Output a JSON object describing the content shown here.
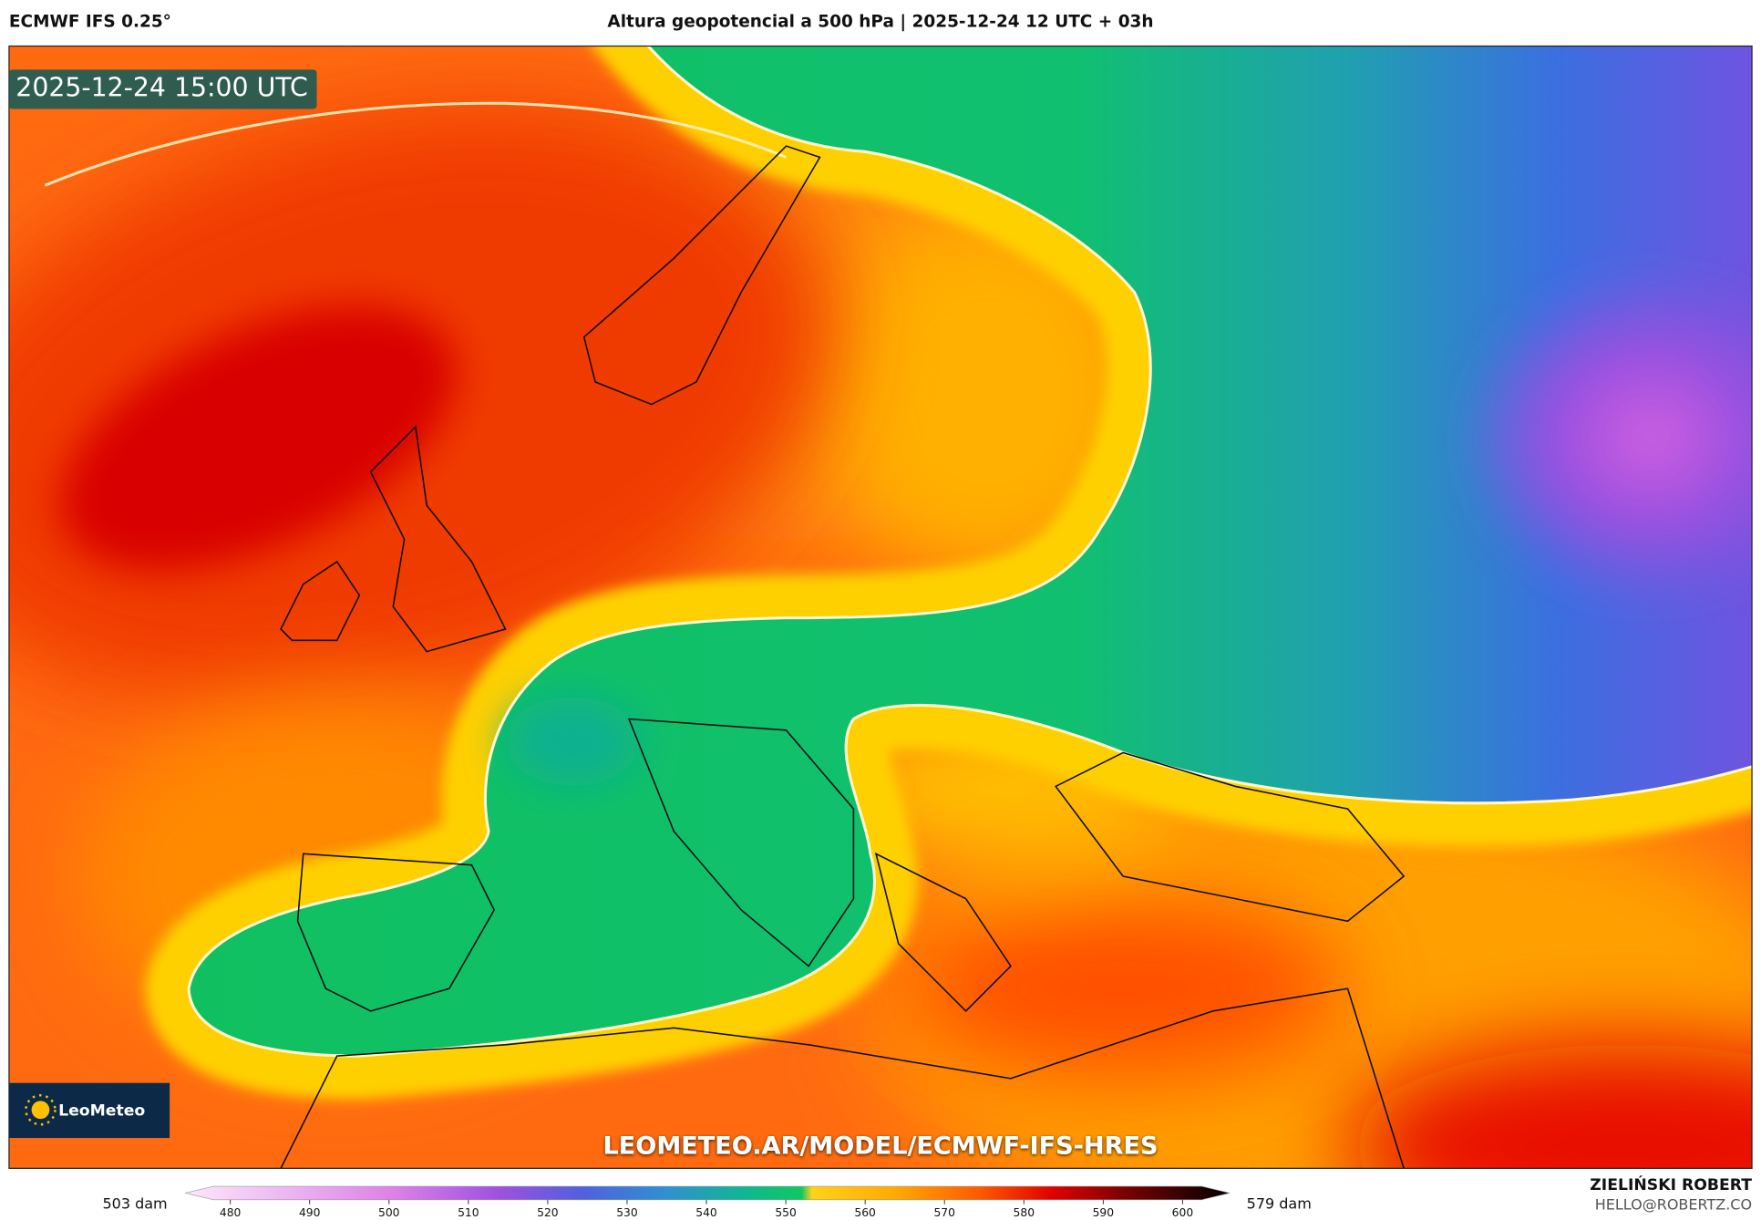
{
  "header": {
    "model": "ECMWF IFS 0.25°",
    "title": "Altura geopotencial a 500 hPa | 2025-12-24 12 UTC + 03h"
  },
  "map": {
    "timestamp": "2025-12-24 15:00 UTC",
    "logo": "LeoMeteo",
    "url": "LEOMETEO.AR/MODEL/ECMWF-IFS-HRES"
  },
  "colorbar": {
    "min_label": "503 dam",
    "max_label": "579 dam",
    "ticks": [
      480,
      490,
      500,
      510,
      520,
      530,
      540,
      550,
      560,
      570,
      580,
      590,
      600
    ]
  },
  "credit": {
    "name": "ZIELIŃSKI ROBERT",
    "email": "HELLO@ROBERTZ.CO"
  }
}
